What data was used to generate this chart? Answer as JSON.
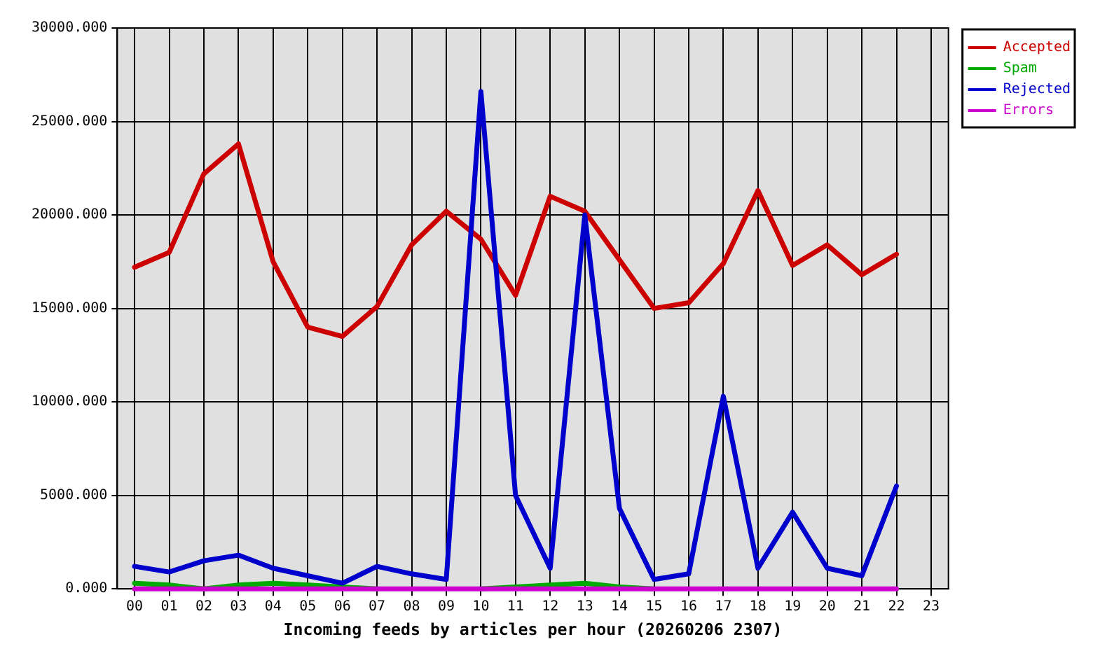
{
  "chart_data": {
    "type": "line",
    "xlabel": "Incoming feeds by articles per hour (20260206 2307)",
    "categories": [
      "00",
      "01",
      "02",
      "03",
      "04",
      "05",
      "06",
      "07",
      "08",
      "09",
      "10",
      "11",
      "12",
      "13",
      "14",
      "15",
      "16",
      "17",
      "18",
      "19",
      "20",
      "21",
      "22",
      "23"
    ],
    "series": [
      {
        "name": "Accepted",
        "color": "#cc0000",
        "values": [
          17200,
          18000,
          22200,
          23800,
          17500,
          14000,
          13500,
          15100,
          18400,
          20200,
          18700,
          15700,
          21000,
          20200,
          17600,
          15000,
          15300,
          17400,
          21300,
          17300,
          18400,
          16800,
          17900,
          null
        ]
      },
      {
        "name": "Spam",
        "color": "#00aa00",
        "values": [
          300,
          200,
          0,
          200,
          300,
          200,
          100,
          0,
          null,
          null,
          0,
          100,
          200,
          300,
          100,
          0,
          null,
          null,
          null,
          null,
          null,
          null,
          null,
          null
        ]
      },
      {
        "name": "Rejected",
        "color": "#0000cc",
        "values": [
          1200,
          900,
          1500,
          1800,
          1100,
          700,
          300,
          1200,
          800,
          500,
          26600,
          5000,
          1100,
          20000,
          4300,
          500,
          800,
          10300,
          1100,
          4100,
          1100,
          700,
          5500,
          null
        ]
      },
      {
        "name": "Errors",
        "color": "#cc00cc",
        "values": [
          0,
          0,
          0,
          0,
          0,
          0,
          0,
          0,
          0,
          0,
          0,
          0,
          0,
          0,
          0,
          0,
          0,
          0,
          0,
          0,
          0,
          0,
          0,
          null
        ]
      }
    ],
    "ylim": [
      0,
      30000
    ],
    "yticks": [
      {
        "value": 0,
        "label": "0.000"
      },
      {
        "value": 5000,
        "label": "5000.000"
      },
      {
        "value": 10000,
        "label": "10000.000"
      },
      {
        "value": 15000,
        "label": "15000.000"
      },
      {
        "value": 20000,
        "label": "20000.000"
      },
      {
        "value": 25000,
        "label": "25000.000"
      },
      {
        "value": 30000,
        "label": "30000.000"
      }
    ],
    "grid": true,
    "legend": "top right",
    "marker": "none"
  }
}
